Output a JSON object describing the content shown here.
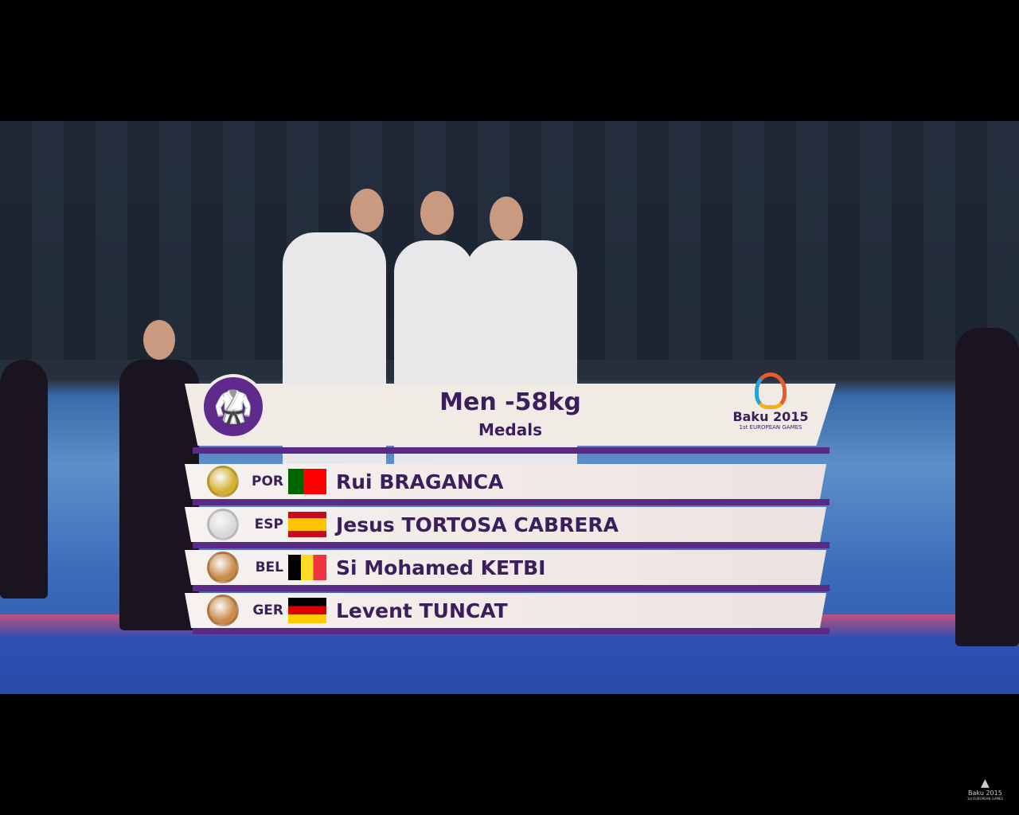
{
  "graphic": {
    "title": "Men -58kg",
    "subtitle": "Medals",
    "sport_icon": "taekwondo-kick-icon",
    "logo": {
      "name": "Baku 2015",
      "tagline": "1st EUROPEAN GAMES"
    },
    "results": [
      {
        "medal": "gold",
        "medal_color": "#d4b030",
        "country": "POR",
        "flag": [
          "#006600",
          "#ff0000"
        ],
        "name": "Rui BRAGANCA"
      },
      {
        "medal": "silver",
        "medal_color": "#d8d8d8",
        "country": "ESP",
        "flag": [
          "#c60b1e",
          "#ffc400",
          "#c60b1e"
        ],
        "name": "Jesus TORTOSA CABRERA"
      },
      {
        "medal": "bronze",
        "medal_color": "#c98a4a",
        "country": "BEL",
        "flag": [
          "#000000",
          "#fdda24",
          "#ef3340"
        ],
        "name": "Si Mohamed KETBI"
      },
      {
        "medal": "bronze",
        "medal_color": "#c98a4a",
        "country": "GER",
        "flag": [
          "#000000",
          "#dd0000",
          "#ffce00"
        ],
        "name": "Levent TUNCAT"
      }
    ],
    "accent": "#5a2a86"
  },
  "watermark": {
    "name": "Baku 2015",
    "tagline": "1st EUROPEAN GAMES"
  }
}
